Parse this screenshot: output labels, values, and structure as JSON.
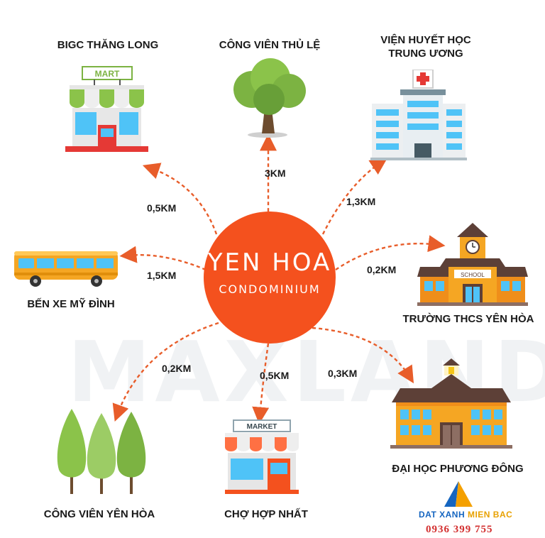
{
  "watermark": "MAXLAND",
  "center": {
    "title": "YEN HOA",
    "subtitle": "CONDOMINIUM"
  },
  "places": {
    "bigc": "BIGC THĂNG LONG",
    "park_thu_le": "CÔNG VIÊN THỦ LỆ",
    "hospital_line1": "VIỆN HUYẾT HỌC",
    "hospital_line2": "TRUNG ƯƠNG",
    "bus": "BẾN XE MỸ ĐÌNH",
    "school": "TRƯỜNG THCS YÊN HÒA",
    "university": "ĐẠI HỌC PHƯƠNG ĐÔNG",
    "market": "CHỢ HỢP NHẤT",
    "park_yen_hoa": "CÔNG VIÊN YÊN HÒA"
  },
  "distances": {
    "bigc": "0,5KM",
    "park_thu_le": "3KM",
    "hospital": "1,3KM",
    "bus": "1,5KM",
    "school": "0,2KM",
    "university": "0,3KM",
    "market": "0,5KM",
    "park_yen_hoa": "0,2KM"
  },
  "icon_text": {
    "mart": "MART",
    "market": "MARKET",
    "school": "SCHOOL"
  },
  "brand": {
    "name_part1": "DAT XANH ",
    "name_part2": "MIEN BAC",
    "phone": "0936 399 755"
  },
  "colors": {
    "accent": "#f4511e",
    "arrow": "#e85d2a",
    "brand_blue": "#1565c0",
    "brand_gold": "#e8a100",
    "phone_red": "#d32f2f"
  },
  "icons": [
    "mart-icon",
    "tree-icon",
    "hospital-icon",
    "bus-icon",
    "school-icon",
    "university-icon",
    "market-icon",
    "forest-icon",
    "brand-logo-icon"
  ]
}
